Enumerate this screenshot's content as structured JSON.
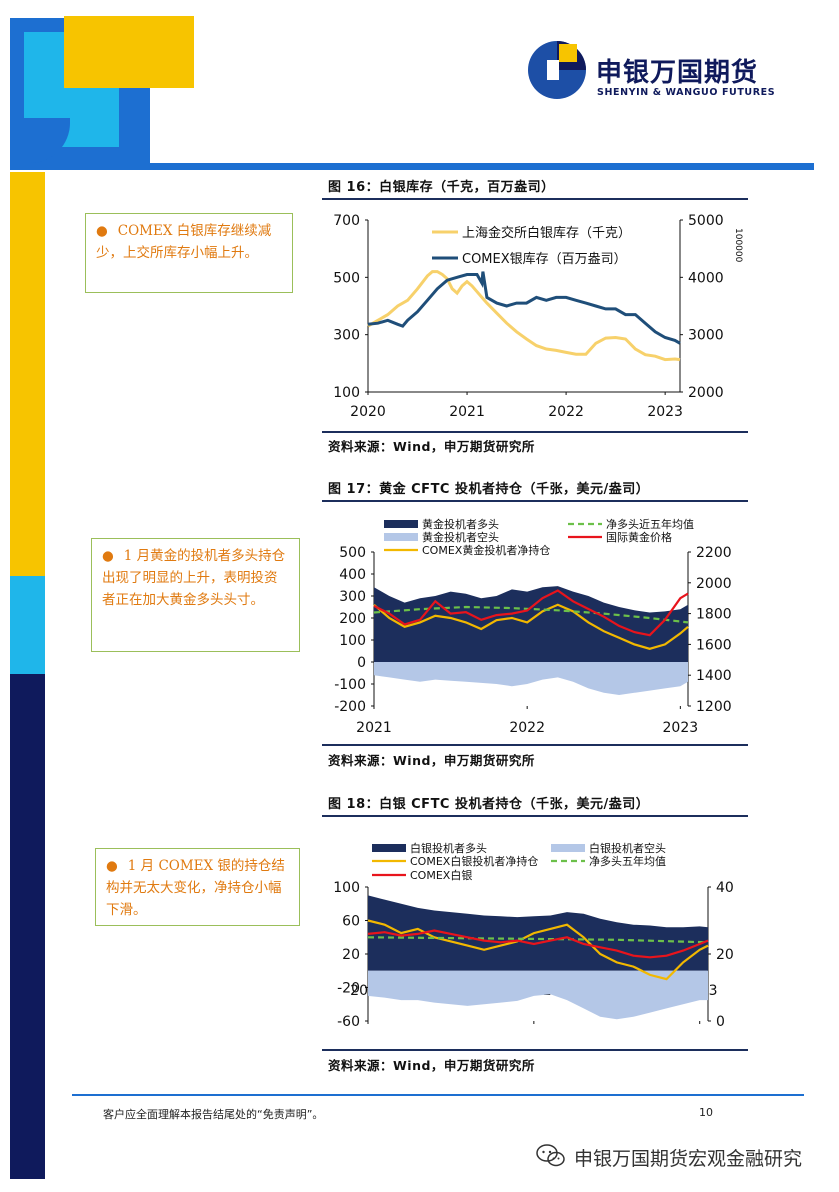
{
  "brand": {
    "name_cn": "申银万国期货",
    "name_en": "SHENYIN & WANGUO FUTURES",
    "colors": {
      "navy": "#0f1a5c",
      "blue": "#1d6fd1",
      "cyan": "#1fb6ea",
      "yellow": "#f7c400"
    }
  },
  "figures": [
    {
      "title": "图 16：白银库存（千克，百万盎司）",
      "source": "资料来源：Wind，申万期货研究所",
      "callout": "COMEX 白银库存继续减少，上交所库存小幅上升。"
    },
    {
      "title": "图 17：黄金 CFTC 投机者持仓（千张，美元/盎司）",
      "source": "资料来源：Wind，申万期货研究所",
      "callout": "1 月黄金的投机者多头持仓出现了明显的上升，表明投资者正在加大黄金多头头寸。"
    },
    {
      "title": "图 18：白银 CFTC 投机者持仓（千张，美元/盎司）",
      "source": "资料来源：Wind，申万期货研究所",
      "callout": "1 月 COMEX 银的持仓结构并无太大变化，净持仓小幅下滑。"
    }
  ],
  "chart_data": [
    {
      "type": "line",
      "x_ticks": [
        "2020",
        "2021",
        "2022",
        "2023"
      ],
      "xlim": [
        2020.0,
        2023.15
      ],
      "y_left": {
        "ticks": [
          100,
          300,
          500,
          700
        ],
        "lim": [
          100,
          700
        ]
      },
      "y_right": {
        "ticks": [
          2000,
          3000,
          4000,
          5000
        ],
        "lim": [
          2000,
          5000
        ],
        "cutoff_label": "100000"
      },
      "series": [
        {
          "name": "上海金交所白银库存（千克）",
          "axis": "left",
          "color": "#f7d16b",
          "x": [
            2020.0,
            2020.1,
            2020.2,
            2020.3,
            2020.4,
            2020.5,
            2020.6,
            2020.65,
            2020.7,
            2020.75,
            2020.8,
            2020.85,
            2020.9,
            2020.95,
            2021.0,
            2021.05,
            2021.1,
            2021.15,
            2021.2,
            2021.3,
            2021.4,
            2021.5,
            2021.6,
            2021.7,
            2021.8,
            2021.9,
            2022.0,
            2022.1,
            2022.2,
            2022.3,
            2022.4,
            2022.5,
            2022.6,
            2022.7,
            2022.8,
            2022.9,
            2023.0,
            2023.1,
            2023.15
          ],
          "y": [
            330,
            350,
            370,
            400,
            420,
            460,
            505,
            520,
            520,
            510,
            495,
            460,
            445,
            470,
            485,
            470,
            450,
            430,
            410,
            375,
            340,
            310,
            285,
            262,
            250,
            245,
            238,
            232,
            232,
            270,
            288,
            290,
            285,
            250,
            230,
            225,
            213,
            215,
            213
          ]
        },
        {
          "name": "COMEX银库存（百万盎司）",
          "axis": "right",
          "color": "#1f4e79",
          "x": [
            2020.0,
            2020.1,
            2020.2,
            2020.3,
            2020.35,
            2020.4,
            2020.5,
            2020.6,
            2020.7,
            2020.8,
            2020.9,
            2021.0,
            2021.1,
            2021.15,
            2021.16,
            2021.2,
            2021.3,
            2021.4,
            2021.5,
            2021.6,
            2021.7,
            2021.8,
            2021.9,
            2022.0,
            2022.1,
            2022.2,
            2022.3,
            2022.4,
            2022.5,
            2022.6,
            2022.7,
            2022.8,
            2022.9,
            2023.0,
            2023.1,
            2023.15
          ],
          "x_note": "",
          "y": [
            3180,
            3200,
            3250,
            3180,
            3150,
            3250,
            3400,
            3600,
            3800,
            3950,
            4000,
            4050,
            4050,
            3900,
            4100,
            3650,
            3550,
            3500,
            3550,
            3550,
            3650,
            3600,
            3650,
            3650,
            3600,
            3550,
            3500,
            3450,
            3450,
            3350,
            3350,
            3200,
            3050,
            2950,
            2900,
            2850
          ]
        }
      ]
    },
    {
      "type": "area",
      "x_ticks": [
        "2021",
        "2022",
        "2023"
      ],
      "xlim": [
        2021.0,
        2023.05
      ],
      "y_left": {
        "ticks": [
          -200,
          -100,
          0,
          100,
          200,
          300,
          400,
          500
        ],
        "lim": [
          -200,
          500
        ]
      },
      "y_right": {
        "ticks": [
          1200,
          1400,
          1600,
          1800,
          2000,
          2200
        ],
        "lim": [
          1200,
          2200
        ]
      },
      "series": [
        {
          "name": "黄金投机者多头",
          "axis": "left",
          "color": "#1c2e5c",
          "x": [
            2021.0,
            2021.05,
            2021.1,
            2021.2,
            2021.3,
            2021.4,
            2021.5,
            2021.6,
            2021.7,
            2021.8,
            2021.9,
            2022.0,
            2022.1,
            2022.2,
            2022.3,
            2022.4,
            2022.5,
            2022.6,
            2022.7,
            2022.8,
            2022.9,
            2023.0,
            2023.05
          ],
          "y": [
            340,
            320,
            300,
            270,
            290,
            300,
            320,
            310,
            290,
            300,
            330,
            320,
            340,
            345,
            320,
            300,
            270,
            250,
            235,
            225,
            230,
            240,
            260
          ]
        },
        {
          "name": "黄金投机者空头",
          "axis": "left",
          "color": "#b4c7e7",
          "x": [
            2021.0,
            2021.1,
            2021.2,
            2021.3,
            2021.4,
            2021.5,
            2021.6,
            2021.7,
            2021.8,
            2021.9,
            2022.0,
            2022.1,
            2022.2,
            2022.3,
            2022.4,
            2022.5,
            2022.6,
            2022.7,
            2022.8,
            2022.9,
            2023.0,
            2023.05
          ],
          "y": [
            -60,
            -70,
            -80,
            -90,
            -80,
            -85,
            -90,
            -95,
            -100,
            -110,
            -100,
            -80,
            -70,
            -90,
            -120,
            -140,
            -150,
            -140,
            -130,
            -120,
            -110,
            -90
          ]
        },
        {
          "name": "COMEX黄金投机者净持仓",
          "axis": "left",
          "color": "#f2b800",
          "x": [
            2021.0,
            2021.05,
            2021.1,
            2021.2,
            2021.3,
            2021.4,
            2021.5,
            2021.6,
            2021.7,
            2021.8,
            2021.9,
            2022.0,
            2022.1,
            2022.2,
            2022.3,
            2022.4,
            2022.5,
            2022.6,
            2022.7,
            2022.8,
            2022.9,
            2023.0,
            2023.05
          ],
          "y": [
            260,
            230,
            200,
            160,
            180,
            210,
            200,
            180,
            150,
            190,
            200,
            180,
            230,
            260,
            230,
            180,
            140,
            110,
            80,
            60,
            80,
            130,
            160
          ]
        },
        {
          "name": "净多头近五年均值",
          "axis": "left",
          "color": "#6cc04a",
          "dashed": true,
          "x": [
            2021.0,
            2021.3,
            2021.6,
            2021.9,
            2022.2,
            2022.5,
            2022.8,
            2023.05
          ],
          "y": [
            225,
            240,
            250,
            245,
            235,
            220,
            200,
            180
          ]
        },
        {
          "name": "国际黄金价格",
          "axis": "right",
          "color": "#e8141c",
          "x": [
            2021.0,
            2021.1,
            2021.2,
            2021.3,
            2021.4,
            2021.5,
            2021.6,
            2021.7,
            2021.8,
            2021.9,
            2022.0,
            2022.1,
            2022.2,
            2022.3,
            2022.4,
            2022.5,
            2022.6,
            2022.7,
            2022.8,
            2022.9,
            2023.0,
            2023.05
          ],
          "y": [
            1850,
            1800,
            1730,
            1760,
            1880,
            1800,
            1810,
            1760,
            1790,
            1800,
            1820,
            1900,
            1950,
            1880,
            1830,
            1780,
            1720,
            1680,
            1660,
            1760,
            1900,
            1930
          ]
        }
      ]
    },
    {
      "type": "area",
      "x_ticks": [
        "2021",
        "2022",
        "2023"
      ],
      "xlim": [
        2021.0,
        2023.05
      ],
      "y_left": {
        "ticks": [
          -60,
          -20,
          20,
          60,
          100
        ],
        "lim": [
          -60,
          100
        ]
      },
      "y_right": {
        "ticks": [
          0,
          20,
          40
        ],
        "lim": [
          0,
          40
        ]
      },
      "series": [
        {
          "name": "白银投机者多头",
          "axis": "left",
          "color": "#1c2e5c",
          "x": [
            2021.0,
            2021.1,
            2021.2,
            2021.3,
            2021.4,
            2021.5,
            2021.6,
            2021.7,
            2021.8,
            2021.9,
            2022.0,
            2022.1,
            2022.2,
            2022.3,
            2022.4,
            2022.5,
            2022.6,
            2022.7,
            2022.8,
            2022.9,
            2023.0,
            2023.05
          ],
          "y": [
            90,
            85,
            80,
            75,
            72,
            70,
            68,
            66,
            65,
            64,
            65,
            66,
            70,
            68,
            62,
            58,
            55,
            54,
            52,
            52,
            53,
            52
          ]
        },
        {
          "name": "白银投机者空头",
          "axis": "left",
          "color": "#b4c7e7",
          "x": [
            2021.0,
            2021.1,
            2021.2,
            2021.3,
            2021.4,
            2021.5,
            2021.6,
            2021.7,
            2021.8,
            2021.9,
            2022.0,
            2022.1,
            2022.2,
            2022.3,
            2022.4,
            2022.5,
            2022.6,
            2022.7,
            2022.8,
            2022.9,
            2023.0,
            2023.05
          ],
          "y": [
            -30,
            -32,
            -35,
            -35,
            -38,
            -40,
            -42,
            -40,
            -38,
            -36,
            -30,
            -28,
            -35,
            -45,
            -55,
            -58,
            -55,
            -50,
            -45,
            -40,
            -35,
            -35
          ]
        },
        {
          "name": "COMEX白银投机者净持仓",
          "axis": "left",
          "color": "#f2b800",
          "x": [
            2021.0,
            2021.1,
            2021.2,
            2021.3,
            2021.4,
            2021.5,
            2021.6,
            2021.7,
            2021.8,
            2021.9,
            2022.0,
            2022.1,
            2022.2,
            2022.3,
            2022.4,
            2022.5,
            2022.6,
            2022.7,
            2022.8,
            2022.9,
            2023.0,
            2023.05
          ],
          "y": [
            60,
            55,
            45,
            50,
            40,
            35,
            30,
            25,
            30,
            35,
            45,
            50,
            55,
            40,
            20,
            10,
            5,
            -5,
            -10,
            10,
            25,
            30
          ]
        },
        {
          "name": "净多头五年均值",
          "axis": "left",
          "color": "#6cc04a",
          "dashed": true,
          "x": [
            2021.0,
            2021.5,
            2022.0,
            2022.5,
            2023.05
          ],
          "y": [
            40,
            39,
            38,
            37,
            34
          ]
        },
        {
          "name": "COMEX白银",
          "axis": "right",
          "color": "#e8141c",
          "x": [
            2021.0,
            2021.1,
            2021.2,
            2021.3,
            2021.4,
            2021.5,
            2021.6,
            2021.7,
            2021.8,
            2021.9,
            2022.0,
            2022.1,
            2022.2,
            2022.3,
            2022.4,
            2022.5,
            2022.6,
            2022.7,
            2022.8,
            2022.9,
            2023.0,
            2023.05
          ],
          "y": [
            26,
            26.5,
            25.5,
            26,
            27,
            26,
            25,
            24,
            23.5,
            24,
            23,
            24,
            25,
            23,
            22,
            21,
            19.5,
            19,
            19.5,
            21,
            23,
            24
          ]
        }
      ]
    }
  ],
  "footer": {
    "disclaimer": "客户应全面理解本报告结尾处的“免责声明”。",
    "page_number": "10",
    "watermark": "申银万国期货宏观金融研究"
  }
}
